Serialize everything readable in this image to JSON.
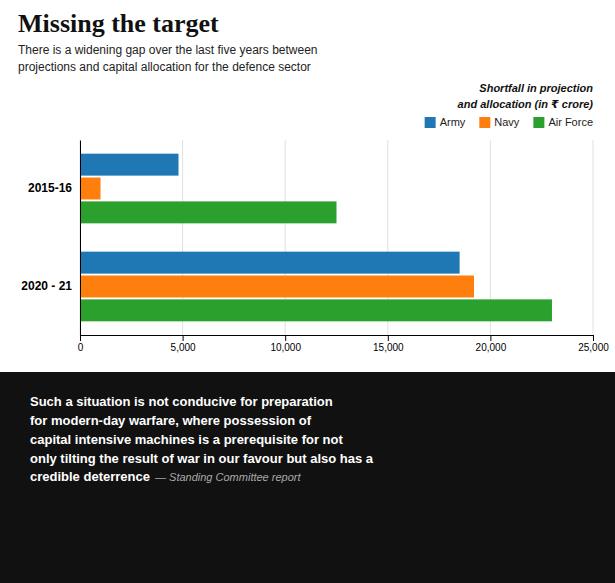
{
  "chart_data": {
    "type": "bar",
    "orientation": "horizontal",
    "title": "Missing the target",
    "subtitle": "There is a widening gap over the last five years between\nprojections and capital allocation for the defence sector",
    "annotations": [
      "Shortfall in projection\nand allocation (in ₹ crore)",
      "Such a situation is not conducive for preparation\nfor modern-day warfare, where possession of\ncapital intensive machines is a prerequisite for not\nonly tilting the result of war in our favour but also has a\ncredible deterrence",
      " — Standing Committee report"
    ],
    "categories": [
      "2015-16",
      "2020 - 21"
    ],
    "series": [
      {
        "name": "Army",
        "values": [
          4800,
          18500
        ]
      },
      {
        "name": "Navy",
        "values": [
          1000,
          19200
        ]
      },
      {
        "name": "Air Force",
        "values": [
          12500,
          23000
        ]
      }
    ],
    "xlim": [
      0,
      25000
    ],
    "xticks": [
      0,
      {
        "value": 5000,
        "label": "5,000"
      },
      {
        "value": 10000,
        "label": "10,000"
      },
      {
        "value": 15000,
        "label": "15,000"
      },
      {
        "value": 20000,
        "label": "20,000"
      },
      {
        "value": 25000,
        "label": "25,000"
      }
    ],
    "grid": true,
    "legend": "right"
  }
}
